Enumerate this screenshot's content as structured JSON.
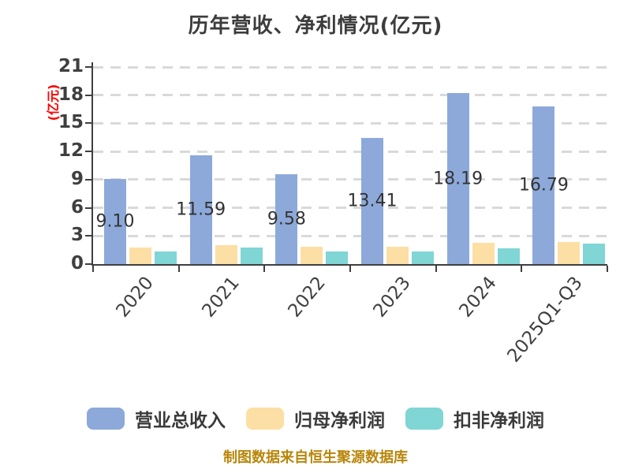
{
  "title": "历年营收、净利情况(亿元)",
  "y_axis_unit": "(亿元)",
  "footer": "制图数据来自恒生聚源数据库",
  "chart_data": {
    "type": "bar",
    "title": "历年营收、净利情况(亿元)",
    "xlabel": "",
    "ylabel": "(亿元)",
    "ylim": [
      0,
      21
    ],
    "y_ticks": [
      0,
      3,
      6,
      9,
      12,
      15,
      18,
      21
    ],
    "grid": "horizontal-dashed",
    "legend_position": "bottom",
    "categories": [
      "2020",
      "2021",
      "2022",
      "2023",
      "2024",
      "2025Q1-Q3"
    ],
    "series": [
      {
        "name": "营业总收入",
        "color": "#8DA9DA",
        "values": [
          9.1,
          11.59,
          9.58,
          13.41,
          18.19,
          16.79
        ],
        "data_labels": [
          "9.10",
          "11.59",
          "9.58",
          "13.41",
          "18.19",
          "16.79"
        ]
      },
      {
        "name": "归母净利润",
        "color": "#FCDFA4",
        "values": [
          1.79,
          1.99,
          1.82,
          1.82,
          2.29,
          2.35
        ],
        "data_labels": []
      },
      {
        "name": "扣非净利润",
        "color": "#80D5D5",
        "values": [
          1.37,
          1.79,
          1.32,
          1.32,
          1.68,
          2.16
        ],
        "data_labels": []
      }
    ]
  },
  "legend": {
    "items": [
      {
        "label": "营业总收入",
        "color": "#8DA9DA"
      },
      {
        "label": "归母净利润",
        "color": "#FCDFA4"
      },
      {
        "label": "扣非净利润",
        "color": "#80D5D5"
      }
    ]
  },
  "colors": {
    "background": "#FFFFFF",
    "title_text": "#3C3C3C",
    "axis_text": "#3F3F3F",
    "axis_line": "#3F3F3F",
    "grid_line": "#D9D9D9",
    "unit_label_red": "#FF0000",
    "bar_value_label": "#333333",
    "footer_gold": "#B8860B"
  }
}
